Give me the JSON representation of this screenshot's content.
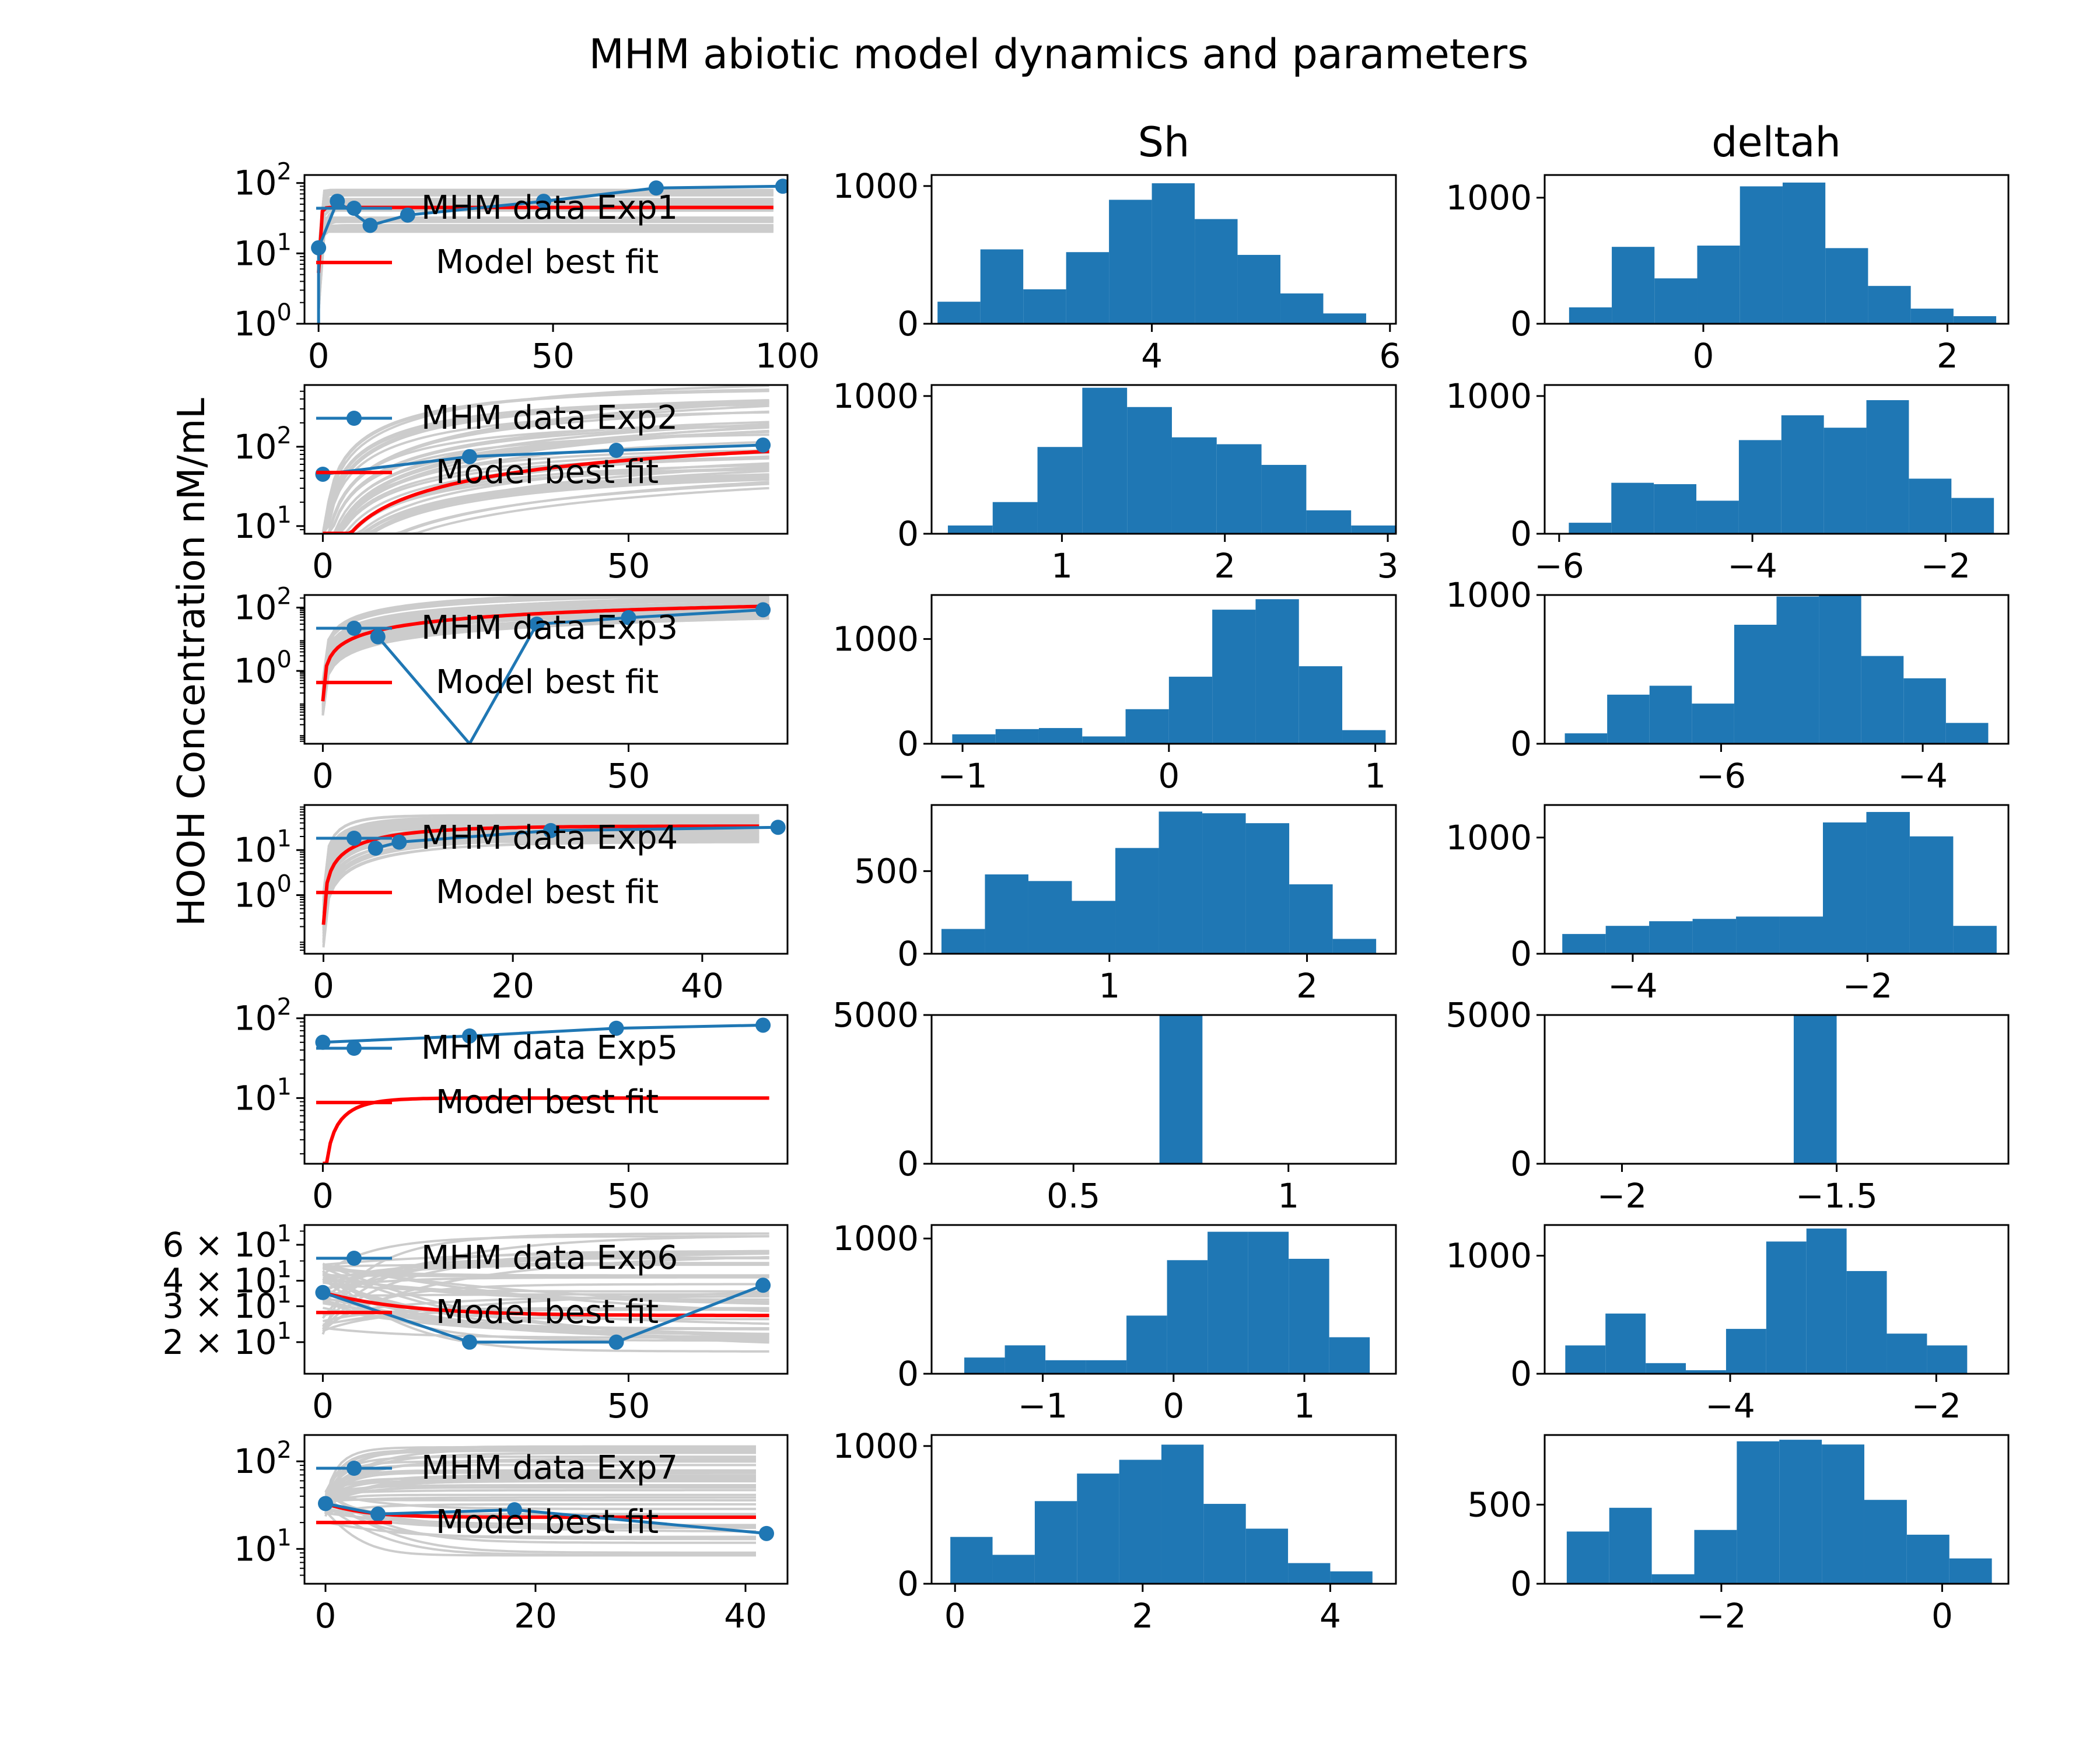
{
  "figure": {
    "title": "MHM abiotic model dynamics and parameters",
    "ylabel": "HOOH Concentration nM/mL",
    "colors": {
      "data": "#1f77b4",
      "model": "#ff0000",
      "ensemble": "#cccccc",
      "hist": "#1f77b4"
    }
  },
  "chart_data": [
    {
      "type": "line",
      "panel": "Exp1",
      "yscale": "log",
      "xlim": [
        -3,
        100
      ],
      "ylim": [
        1,
        130
      ],
      "xticks": [
        "0",
        "50",
        "100"
      ],
      "yticks": [
        "10^0",
        "10^1",
        "10^2"
      ],
      "legend": [
        "MHM data Exp1",
        "Model best fit"
      ],
      "series": [
        {
          "name": "MHM data Exp1",
          "x": [
            0,
            4,
            11,
            19,
            48,
            72,
            99
          ],
          "y": [
            12,
            55,
            25,
            35,
            55,
            85,
            90
          ]
        },
        {
          "name": "Model best fit",
          "plateau": 45,
          "rate": 2.5
        }
      ],
      "ensemble": {
        "low": 20,
        "high": 80,
        "rate": 2
      }
    },
    {
      "type": "line",
      "panel": "Exp2",
      "yscale": "log",
      "xlim": [
        -3,
        76
      ],
      "ylim": [
        8,
        600
      ],
      "xticks": [
        "0",
        "50"
      ],
      "yticks": [
        "10^1",
        "10^2"
      ],
      "legend": [
        "MHM data Exp2",
        "Model best fit"
      ],
      "series": [
        {
          "name": "MHM data Exp2",
          "x": [
            0,
            24,
            48,
            72
          ],
          "y": [
            45,
            75,
            90,
            105
          ]
        },
        {
          "name": "Model best fit",
          "plateau": 150,
          "rate": 0.012
        }
      ],
      "ensemble": {
        "low": 40,
        "high": 700,
        "rate": 0.02
      }
    },
    {
      "type": "line",
      "panel": "Exp3",
      "yscale": "log",
      "xlim": [
        -3,
        76
      ],
      "ylim": [
        0.005,
        250
      ],
      "xticks": [
        "0",
        "50"
      ],
      "yticks": [
        "10^0",
        "10^2"
      ],
      "legend": [
        "MHM data Exp3",
        "Model best fit"
      ],
      "series": [
        {
          "name": "MHM data Exp3",
          "x": [
            0,
            9,
            24,
            35,
            50,
            72
          ],
          "y": [
            null,
            12,
            0.005,
            30,
            48,
            85
          ]
        },
        {
          "name": "Model best fit",
          "plateau": 200,
          "rate": 0.011
        }
      ],
      "ensemble": {
        "low": 80,
        "high": 400,
        "rate": 0.015
      }
    },
    {
      "type": "line",
      "panel": "Exp4",
      "yscale": "log",
      "xlim": [
        -2,
        49
      ],
      "ylim": [
        0.05,
        100
      ],
      "xticks": [
        "0",
        "20",
        "40"
      ],
      "yticks": [
        "10^0",
        "10^1"
      ],
      "legend": [
        "MHM data Exp4",
        "Model best fit"
      ],
      "series": [
        {
          "name": "MHM data Exp4",
          "x": [
            0,
            5.5,
            8,
            24,
            48
          ],
          "y": [
            null,
            11,
            15,
            27,
            32
          ]
        },
        {
          "name": "Model best fit",
          "plateau": 34,
          "rate": 0.13
        }
      ],
      "ensemble": {
        "low": 15,
        "high": 60,
        "rate": 0.2
      }
    },
    {
      "type": "line",
      "panel": "Exp5",
      "yscale": "log",
      "xlim": [
        -3,
        76
      ],
      "ylim": [
        1.5,
        110
      ],
      "xticks": [
        "0",
        "50"
      ],
      "yticks": [
        "10^1",
        "10^2"
      ],
      "legend": [
        "MHM data Exp5",
        "Model best fit"
      ],
      "series": [
        {
          "name": "MHM data Exp5",
          "x": [
            0,
            24,
            48,
            72
          ],
          "y": [
            50,
            60,
            75,
            82
          ]
        },
        {
          "name": "Model best fit",
          "plateau": 10,
          "rate": 0.25
        }
      ]
    },
    {
      "type": "line",
      "panel": "Exp6",
      "yscale": "log",
      "xlim": [
        -3,
        76
      ],
      "ylim": [
        14,
        75
      ],
      "xticks": [
        "0",
        "50"
      ],
      "yticks": [
        "6 × 10^1",
        "4 × 10^1",
        "3 × 10^1",
        "2 × 10^1"
      ],
      "legend": [
        "MHM data Exp6",
        "Model best fit"
      ],
      "series": [
        {
          "name": "MHM data Exp6",
          "x": [
            0,
            24,
            48,
            72
          ],
          "y": [
            35,
            20,
            20,
            38
          ]
        },
        {
          "name": "Model best fit",
          "start": 35,
          "plateau": 27,
          "rate": 0.08
        }
      ],
      "ensemble": {
        "low": 18,
        "high": 70,
        "rate": 0.06
      }
    },
    {
      "type": "line",
      "panel": "Exp7",
      "yscale": "log",
      "xlim": [
        -2,
        44
      ],
      "ylim": [
        4,
        200
      ],
      "xticks": [
        "0",
        "20",
        "40"
      ],
      "yticks": [
        "10^1",
        "10^2"
      ],
      "legend": [
        "MHM data Exp7",
        "Model best fit"
      ],
      "series": [
        {
          "name": "MHM data Exp7",
          "x": [
            0,
            5,
            18,
            42
          ],
          "y": [
            33,
            25,
            28,
            15
          ]
        },
        {
          "name": "Model best fit",
          "start": 33,
          "plateau": 23,
          "rate": 0.3
        }
      ],
      "ensemble": {
        "low": 8,
        "high": 160,
        "rate": 0.3
      }
    },
    {
      "type": "bar",
      "panel": "Sh Exp1",
      "title": "Sh",
      "xlim": [
        2.15,
        6.05
      ],
      "ylim": [
        0,
        1080
      ],
      "xticks": [
        4,
        6
      ],
      "yticks": [
        0,
        1000
      ],
      "bin_start": 2.2,
      "bin_width": 0.36,
      "counts": [
        160,
        540,
        250,
        520,
        900,
        1020,
        760,
        500,
        220,
        75
      ]
    },
    {
      "type": "bar",
      "panel": "deltah Exp1",
      "title": "deltah",
      "xlim": [
        -1.3,
        2.5
      ],
      "ylim": [
        0,
        1180
      ],
      "xticks": [
        0,
        2
      ],
      "yticks": [
        0,
        1000
      ],
      "bin_start": -1.1,
      "bin_width": 0.35,
      "counts": [
        130,
        610,
        360,
        620,
        1090,
        1120,
        600,
        300,
        120,
        60
      ]
    },
    {
      "type": "bar",
      "panel": "Sh Exp2",
      "xlim": [
        0.2,
        3.05
      ],
      "ylim": [
        0,
        1080
      ],
      "xticks": [
        1,
        2,
        3
      ],
      "yticks": [
        0,
        1000
      ],
      "bin_start": 0.3,
      "bin_width": 0.275,
      "counts": [
        60,
        230,
        630,
        1060,
        920,
        700,
        650,
        500,
        170,
        60
      ]
    },
    {
      "type": "bar",
      "panel": "deltah Exp2",
      "xlim": [
        -6.15,
        -1.35
      ],
      "ylim": [
        0,
        1080
      ],
      "xticks": [
        -6,
        -4,
        -2
      ],
      "yticks": [
        0,
        1000
      ],
      "bin_start": -5.9,
      "bin_width": 0.44,
      "counts": [
        80,
        370,
        360,
        240,
        680,
        860,
        770,
        970,
        400,
        260
      ]
    },
    {
      "type": "bar",
      "panel": "Sh Exp3",
      "xlim": [
        -1.15,
        1.1
      ],
      "ylim": [
        0,
        1420
      ],
      "xticks": [
        -1,
        0,
        1
      ],
      "yticks": [
        0,
        1000
      ],
      "bin_start": -1.05,
      "bin_width": 0.21,
      "counts": [
        90,
        140,
        150,
        70,
        330,
        640,
        1280,
        1380,
        740,
        130
      ]
    },
    {
      "type": "bar",
      "panel": "deltah Exp3",
      "xlim": [
        -7.75,
        -3.15
      ],
      "ylim": [
        0,
        1000
      ],
      "xticks": [
        -6,
        -4
      ],
      "yticks": [
        0,
        1000
      ],
      "bin_start": -7.55,
      "bin_width": 0.42,
      "counts": [
        70,
        330,
        390,
        270,
        800,
        990,
        1000,
        590,
        440,
        140
      ]
    },
    {
      "type": "bar",
      "panel": "Sh Exp4",
      "xlim": [
        0.1,
        2.45
      ],
      "ylim": [
        0,
        900
      ],
      "xticks": [
        1,
        2
      ],
      "yticks": [
        0,
        500
      ],
      "bin_start": 0.15,
      "bin_width": 0.22,
      "counts": [
        150,
        480,
        440,
        320,
        640,
        860,
        850,
        790,
        420,
        90
      ]
    },
    {
      "type": "bar",
      "panel": "deltah Exp4",
      "xlim": [
        -4.75,
        -0.8
      ],
      "ylim": [
        0,
        1280
      ],
      "xticks": [
        -4,
        -2
      ],
      "yticks": [
        0,
        1000
      ],
      "bin_start": -4.6,
      "bin_width": 0.37,
      "counts": [
        170,
        240,
        280,
        300,
        320,
        320,
        1130,
        1220,
        1010,
        240
      ]
    },
    {
      "type": "bar",
      "panel": "Sh Exp5",
      "xlim": [
        0.17,
        1.25
      ],
      "ylim": [
        0,
        5000
      ],
      "xticks": [
        0.5,
        1.0
      ],
      "yticks": [
        0,
        5000
      ],
      "bin_start": 0.7,
      "bin_width": 0.1,
      "counts": [
        5000
      ]
    },
    {
      "type": "bar",
      "panel": "deltah Exp5",
      "xlim": [
        -2.18,
        -1.1
      ],
      "ylim": [
        0,
        5000
      ],
      "xticks": [
        -2.0,
        -1.5
      ],
      "yticks": [
        0,
        5000
      ],
      "bin_start": -1.6,
      "bin_width": 0.1,
      "counts": [
        5000
      ]
    },
    {
      "type": "bar",
      "panel": "Sh Exp6",
      "xlim": [
        -1.85,
        1.7
      ],
      "ylim": [
        0,
        1100
      ],
      "xticks": [
        -1,
        0,
        1
      ],
      "yticks": [
        0,
        1000
      ],
      "bin_start": -1.6,
      "bin_width": 0.31,
      "counts": [
        120,
        210,
        100,
        100,
        430,
        840,
        1050,
        1050,
        850,
        270
      ]
    },
    {
      "type": "bar",
      "panel": "deltah Exp6",
      "xlim": [
        -5.8,
        -1.3
      ],
      "ylim": [
        0,
        1260
      ],
      "xticks": [
        -4,
        -2
      ],
      "yticks": [
        0,
        1000
      ],
      "bin_start": -5.6,
      "bin_width": 0.39,
      "counts": [
        240,
        510,
        90,
        30,
        380,
        1120,
        1230,
        870,
        340,
        240
      ]
    },
    {
      "type": "bar",
      "panel": "Sh Exp7",
      "xlim": [
        -0.25,
        4.7
      ],
      "ylim": [
        0,
        1080
      ],
      "xticks": [
        0,
        2,
        4
      ],
      "yticks": [
        0,
        1000
      ],
      "bin_start": -0.05,
      "bin_width": 0.45,
      "counts": [
        340,
        210,
        600,
        800,
        900,
        1010,
        580,
        400,
        150,
        90
      ]
    },
    {
      "type": "bar",
      "panel": "deltah Exp7",
      "xlim": [
        -3.6,
        0.6
      ],
      "ylim": [
        0,
        940
      ],
      "xticks": [
        -2,
        0
      ],
      "yticks": [
        0,
        500
      ],
      "bin_start": -3.4,
      "bin_width": 0.385,
      "counts": [
        330,
        480,
        60,
        340,
        900,
        910,
        880,
        530,
        310,
        160
      ]
    }
  ]
}
